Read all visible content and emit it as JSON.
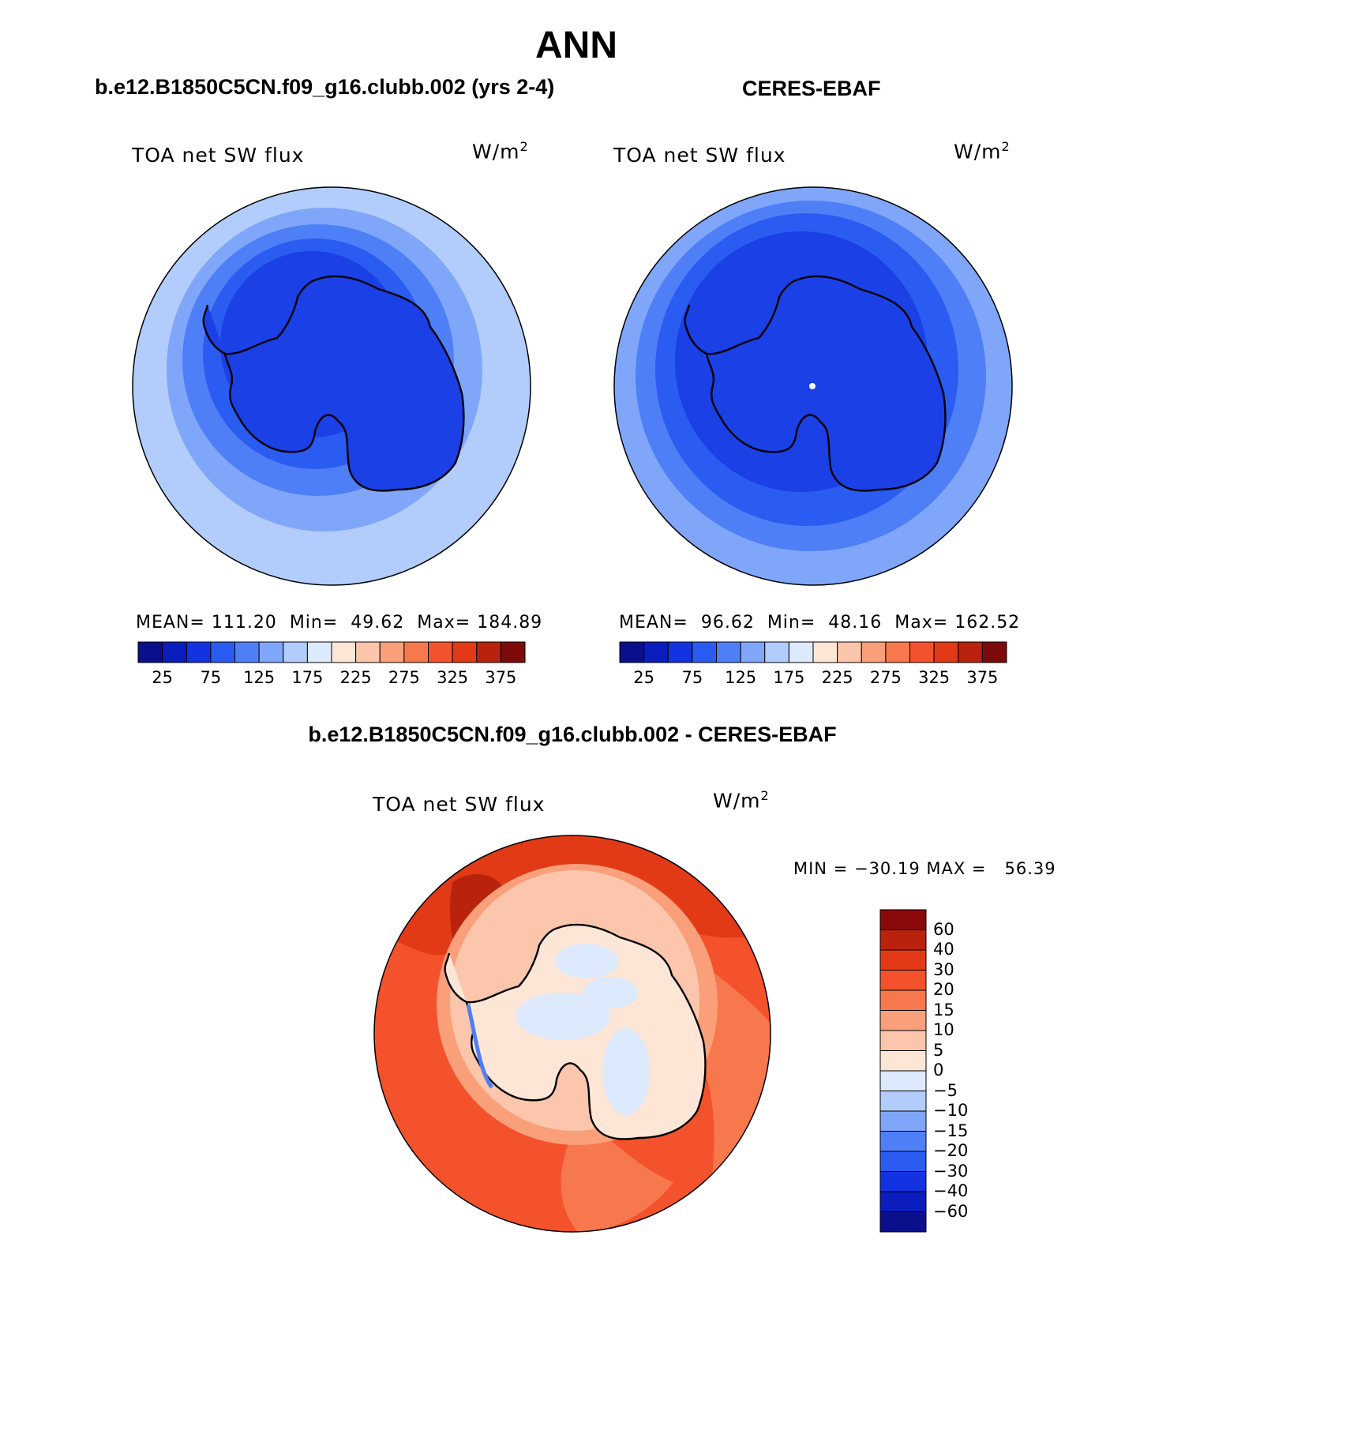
{
  "title": "ANN",
  "panels": [
    {
      "id": "model",
      "header": "b.e12.B1850C5CN.f09_g16.clubb.002 (yrs 2-4)",
      "variable": "TOA net SW flux",
      "units": "W/m",
      "units_sup": "2",
      "stats": {
        "mean_label": "MEAN=",
        "mean": "111.20",
        "min_label": "Min=",
        "min": "49.62",
        "max_label": "Max=",
        "max": "184.89"
      },
      "rings": [
        "#b2ccfb",
        "#7fa6f9",
        "#4f7ff7",
        "#2b5cf2",
        "#1a40e6"
      ]
    },
    {
      "id": "obs",
      "header": "CERES-EBAF",
      "variable": "TOA net SW flux",
      "units": "W/m",
      "units_sup": "2",
      "stats": {
        "mean_label": "MEAN=",
        "mean": "96.62",
        "min_label": "Min=",
        "min": "48.16",
        "max_label": "Max=",
        "max": "162.52"
      },
      "rings": [
        "#7fa6f9",
        "#4f7ff7",
        "#2b5cf2",
        "#1a40e6",
        "#1a40e6"
      ]
    }
  ],
  "top_colorbar": {
    "colors": [
      "#0b0f8c",
      "#0a1dbd",
      "#1433e0",
      "#2b5cf2",
      "#4f7ff7",
      "#7fa6f9",
      "#b2ccfb",
      "#dde9fc",
      "#fde6d6",
      "#fbc6ab",
      "#f9a07b",
      "#f7784c",
      "#f4522c",
      "#e23a16",
      "#b9230e",
      "#7d0b0b"
    ],
    "labels": [
      "25",
      "75",
      "125",
      "175",
      "225",
      "275",
      "325",
      "375"
    ]
  },
  "diff_panel": {
    "header": "b.e12.B1850C5CN.f09_g16.clubb.002 - CERES-EBAF",
    "variable": "TOA net SW flux",
    "units": "W/m",
    "units_sup": "2",
    "minmax": "MIN = −30.19 MAX =   56.39",
    "colorbar_colors": [
      "#8a0a0a",
      "#b9230e",
      "#e23a16",
      "#f4522c",
      "#f7784c",
      "#f9a07b",
      "#fbc6ab",
      "#fde6d6",
      "#dde9fc",
      "#b2ccfb",
      "#7fa6f9",
      "#4f7ff7",
      "#2b5cf2",
      "#1433e0",
      "#0a1dbd",
      "#0b0f8c"
    ],
    "colorbar_labels": [
      "60",
      "40",
      "30",
      "20",
      "15",
      "10",
      "5",
      "0",
      "−5",
      "−10",
      "−15",
      "−20",
      "−30",
      "−40",
      "−60"
    ]
  }
}
